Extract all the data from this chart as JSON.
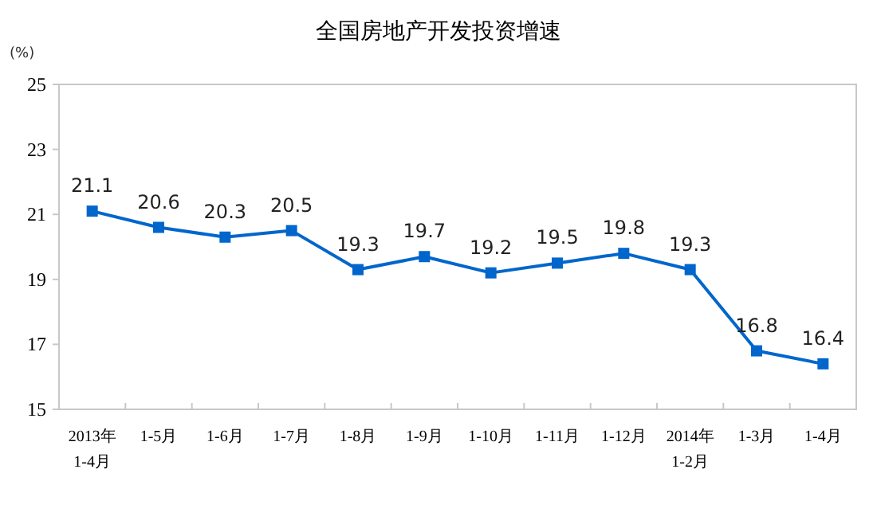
{
  "chart_data": {
    "type": "line",
    "title": "全国房地产开发投资增速",
    "ylabel": "(%)",
    "categories": [
      "2013年\n1-4月",
      "1-5月",
      "1-6月",
      "1-7月",
      "1-8月",
      "1-9月",
      "1-10月",
      "1-11月",
      "1-12月",
      "2014年\n1-2月",
      "1-3月",
      "1-4月"
    ],
    "series": [
      {
        "color": "#0066cc",
        "values": [
          21.1,
          20.6,
          20.3,
          20.5,
          19.3,
          19.7,
          19.2,
          19.5,
          19.8,
          19.3,
          16.8,
          16.4
        ]
      }
    ],
    "ylim": [
      15,
      25
    ],
    "yticks": [
      15,
      17,
      19,
      21,
      23,
      25
    ],
    "marker": "square",
    "line_style": "solid",
    "data_labels": true
  }
}
